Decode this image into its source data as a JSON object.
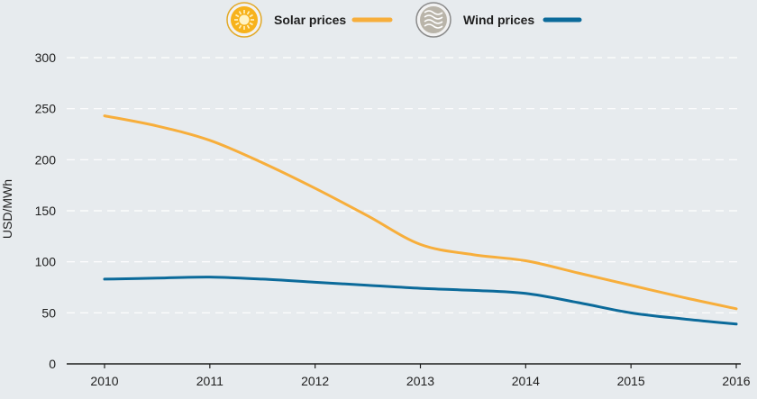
{
  "chart_data": {
    "type": "line",
    "title": "",
    "xlabel": "",
    "ylabel": "USD/MWh",
    "x": [
      2010,
      2010.5,
      2011,
      2011.5,
      2012,
      2012.5,
      2013,
      2013.5,
      2014,
      2014.5,
      2015,
      2015.5,
      2016
    ],
    "ylim": [
      0,
      300
    ],
    "yticks": [
      0,
      50,
      100,
      150,
      200,
      250,
      300
    ],
    "xticks": [
      "2010",
      "2011",
      "2012",
      "2013",
      "2014",
      "2015",
      "2016"
    ],
    "grid": "horizontal dashed",
    "legend_position": "top-center",
    "series": [
      {
        "name": "Solar prices",
        "color": "#f7ae3b",
        "icon": "sun-icon",
        "values": [
          243,
          233,
          219,
          197,
          172,
          145,
          117,
          107,
          101,
          89,
          77,
          65,
          54
        ]
      },
      {
        "name": "Wind prices",
        "color": "#0b6a9a",
        "icon": "wind-icon",
        "values": [
          83,
          84,
          85,
          83,
          80,
          77,
          74,
          72,
          69,
          60,
          50,
          44,
          39
        ]
      }
    ]
  }
}
